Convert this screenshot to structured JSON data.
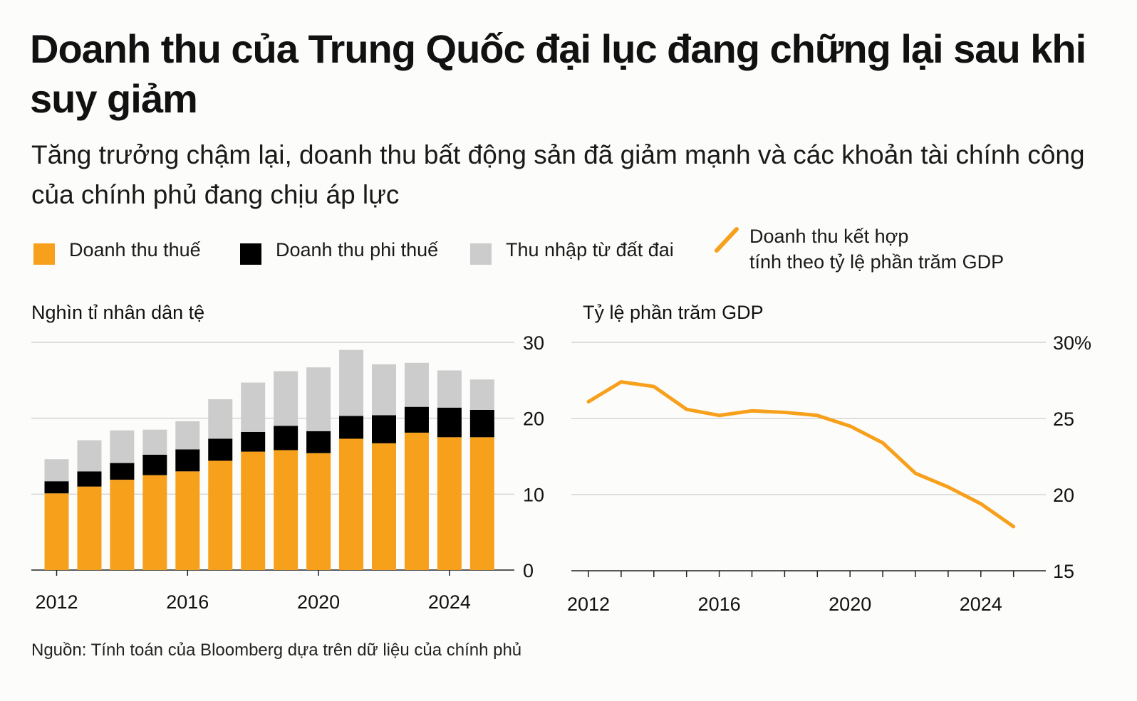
{
  "header": {
    "title": "Doanh thu của Trung Quốc đại lục đang chững lại sau khi suy giảm",
    "subtitle": "Tăng trưởng chậm lại, doanh thu bất động sản đã giảm mạnh và các khoản tài chính công của chính phủ đang chịu áp lực"
  },
  "legend": {
    "tax": "Doanh thu thuế",
    "nontax": "Doanh thu phi thuế",
    "land": "Thu nhập từ đất đai",
    "line_line1": "Doanh thu kết hợp",
    "line_line2": "tính theo tỷ lệ phần trăm GDP"
  },
  "colors": {
    "tax": "#F7A01C",
    "nontax": "#000000",
    "land": "#CCCCCC",
    "line": "#F7A01C",
    "grid": "#d4d4d4"
  },
  "footer": {
    "source": "Nguồn: Tính toán của Bloomberg dựa trên dữ liệu của chính phủ"
  },
  "chart_data": [
    {
      "type": "bar",
      "stacked": true,
      "ylabel": "Nghìn tỉ nhân dân tệ",
      "ylim": [
        0,
        30
      ],
      "yticks": [
        "0",
        "10",
        "20",
        "30"
      ],
      "xticks": [
        "2012",
        "2016",
        "2020",
        "2024"
      ],
      "categories": [
        2012,
        2013,
        2014,
        2015,
        2016,
        2017,
        2018,
        2019,
        2020,
        2021,
        2022,
        2023,
        2024,
        2025
      ],
      "series": [
        {
          "name": "Doanh thu thuế",
          "values": [
            10.1,
            11.0,
            11.9,
            12.5,
            13.0,
            14.4,
            15.6,
            15.8,
            15.4,
            17.3,
            16.7,
            18.1,
            17.5,
            17.5
          ]
        },
        {
          "name": "Doanh thu phi thuế",
          "values": [
            1.6,
            2.0,
            2.2,
            2.7,
            2.9,
            2.9,
            2.6,
            3.2,
            2.9,
            3.0,
            3.7,
            3.4,
            3.9,
            3.6
          ]
        },
        {
          "name": "Thu nhập từ đất đai",
          "values": [
            2.9,
            4.1,
            4.3,
            3.3,
            3.7,
            5.2,
            6.5,
            7.2,
            8.4,
            8.7,
            6.7,
            5.8,
            4.9,
            4.0
          ]
        }
      ],
      "grid": true
    },
    {
      "type": "line",
      "ylabel": "Tỷ lệ phần trăm GDP",
      "ylim": [
        15,
        30
      ],
      "yticks": [
        "15",
        "20",
        "25",
        "30%"
      ],
      "xticks": [
        "2012",
        "2016",
        "2020",
        "2024"
      ],
      "series": [
        {
          "name": "Doanh thu kết hợp tính theo tỷ lệ phần trăm GDP",
          "x": [
            2012,
            2013,
            2014,
            2015,
            2016,
            2017,
            2018,
            2019,
            2020,
            2021,
            2022,
            2023,
            2024,
            2025
          ],
          "values": [
            26.1,
            27.4,
            27.1,
            25.6,
            25.2,
            25.5,
            25.4,
            25.2,
            24.5,
            23.4,
            21.4,
            20.5,
            19.4,
            17.9
          ]
        }
      ],
      "grid": true
    }
  ]
}
